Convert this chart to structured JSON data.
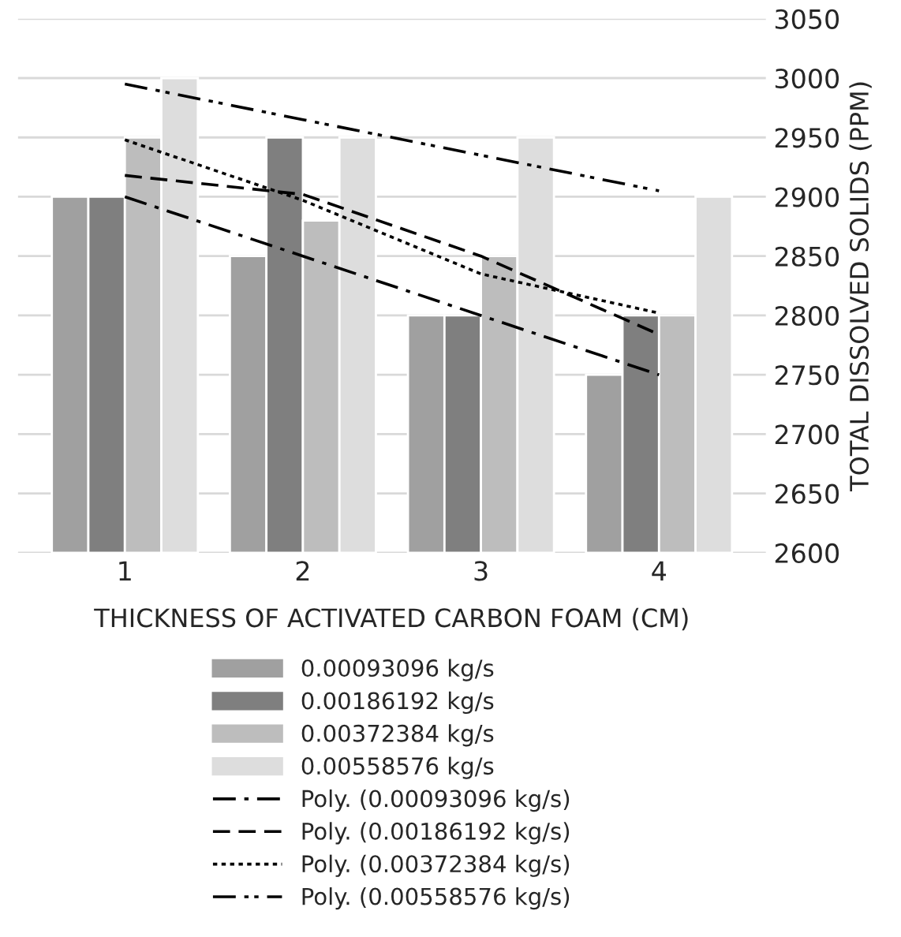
{
  "chart_data": {
    "type": "bar",
    "xlabel": "THICKNESS OF ACTIVATED CARBON FOAM (CM)",
    "ylabel": "TOTAL DISSOLVED SOLIDS (PPM)",
    "categories": [
      "1",
      "2",
      "3",
      "4"
    ],
    "series": [
      {
        "name": "0.00093096 kg/s",
        "color": "#a0a0a0",
        "values": [
          2900,
          2850,
          2800,
          2750
        ]
      },
      {
        "name": "0.00186192 kg/s",
        "color": "#7f7f7f",
        "values": [
          2900,
          2950,
          2800,
          2800
        ]
      },
      {
        "name": "0.00372384 kg/s",
        "color": "#bdbdbd",
        "values": [
          2950,
          2880,
          2850,
          2800
        ]
      },
      {
        "name": "0.00558576 kg/s",
        "color": "#dddddd",
        "values": [
          3000,
          2950,
          2950,
          2900
        ]
      },
      {
        "name": "Poly. (0.00093096 kg/s)",
        "type": "line",
        "color": "#000000",
        "line_style": "dashdot",
        "values": [
          2900,
          2850,
          2800,
          2750
        ]
      },
      {
        "name": "Poly. (0.00186192 kg/s)",
        "type": "line",
        "color": "#000000",
        "line_style": "dashed",
        "values": [
          2918,
          2902,
          2850,
          2784
        ]
      },
      {
        "name": "Poly. (0.00372384 kg/s)",
        "type": "line",
        "color": "#000000",
        "line_style": "dotted",
        "values": [
          2948,
          2897,
          2835,
          2802
        ]
      },
      {
        "name": "Poly. (0.00558576 kg/s)",
        "type": "line",
        "color": "#000000",
        "line_style": "dashdotdot",
        "values": [
          2995,
          2965,
          2935,
          2905
        ]
      }
    ],
    "ylim": [
      2600,
      3050
    ],
    "yticks": [
      2600,
      2650,
      2700,
      2750,
      2800,
      2850,
      2900,
      2950,
      3000,
      3050
    ],
    "grid": "y",
    "legend": "bottom"
  }
}
